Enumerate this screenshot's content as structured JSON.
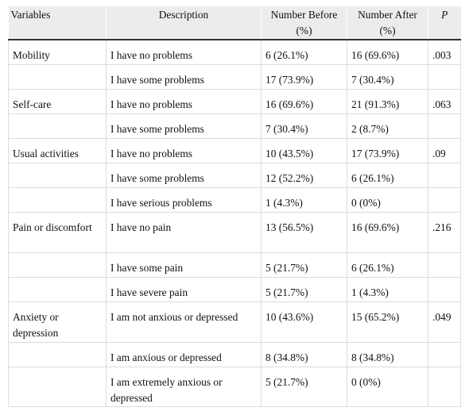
{
  "table": {
    "headers": {
      "variables": "Variables",
      "description": "Description",
      "before": "Number Before (%)",
      "after": "Number After (%)",
      "p": "P"
    },
    "groups": [
      {
        "variable": "Mobility",
        "p": ".003",
        "rows": [
          {
            "description": "I have no problems",
            "before": "6 (26.1%)",
            "after": "16 (69.6%)"
          },
          {
            "description": "I have some problems",
            "before": "17 (73.9%)",
            "after": "7 (30.4%)"
          }
        ]
      },
      {
        "variable": "Self-care",
        "p": ".063",
        "rows": [
          {
            "description": "I have no problems",
            "before": "16 (69.6%)",
            "after": "21 (91.3%)"
          },
          {
            "description": "I have some problems",
            "before": "7 (30.4%)",
            "after": "2 (8.7%)"
          }
        ]
      },
      {
        "variable": "Usual activities",
        "p": ".09",
        "rows": [
          {
            "description": "I have no problems",
            "before": "10 (43.5%)",
            "after": "17 (73.9%)"
          },
          {
            "description": "I have some problems",
            "before": "12 (52.2%)",
            "after": "6 (26.1%)"
          },
          {
            "description": "I have serious problems",
            "before": "1 (4.3%)",
            "after": "0 (0%)"
          }
        ]
      },
      {
        "variable": "Pain or discomfort",
        "p": ".216",
        "rows": [
          {
            "description": "I have no pain",
            "before": "13 (56.5%)",
            "after": "16 (69.6%)"
          },
          {
            "description": "I have some pain",
            "before": "5 (21.7%)",
            "after": "6 (26.1%)"
          },
          {
            "description": "I have severe pain",
            "before": "5 (21.7%)",
            "after": "1 (4.3%)"
          }
        ]
      },
      {
        "variable": "Anxiety or depression",
        "p": ".049",
        "rows": [
          {
            "description": "I am not anxious or depressed",
            "before": "10 (43.6%)",
            "after": "15 (65.2%)"
          },
          {
            "description": "I am anxious or depressed",
            "before": "8 (34.8%)",
            "after": "8 (34.8%)"
          },
          {
            "description": "I am extremely anxious or depressed",
            "before": "5 (21.7%)",
            "after": "0 (0%)"
          }
        ]
      }
    ]
  }
}
